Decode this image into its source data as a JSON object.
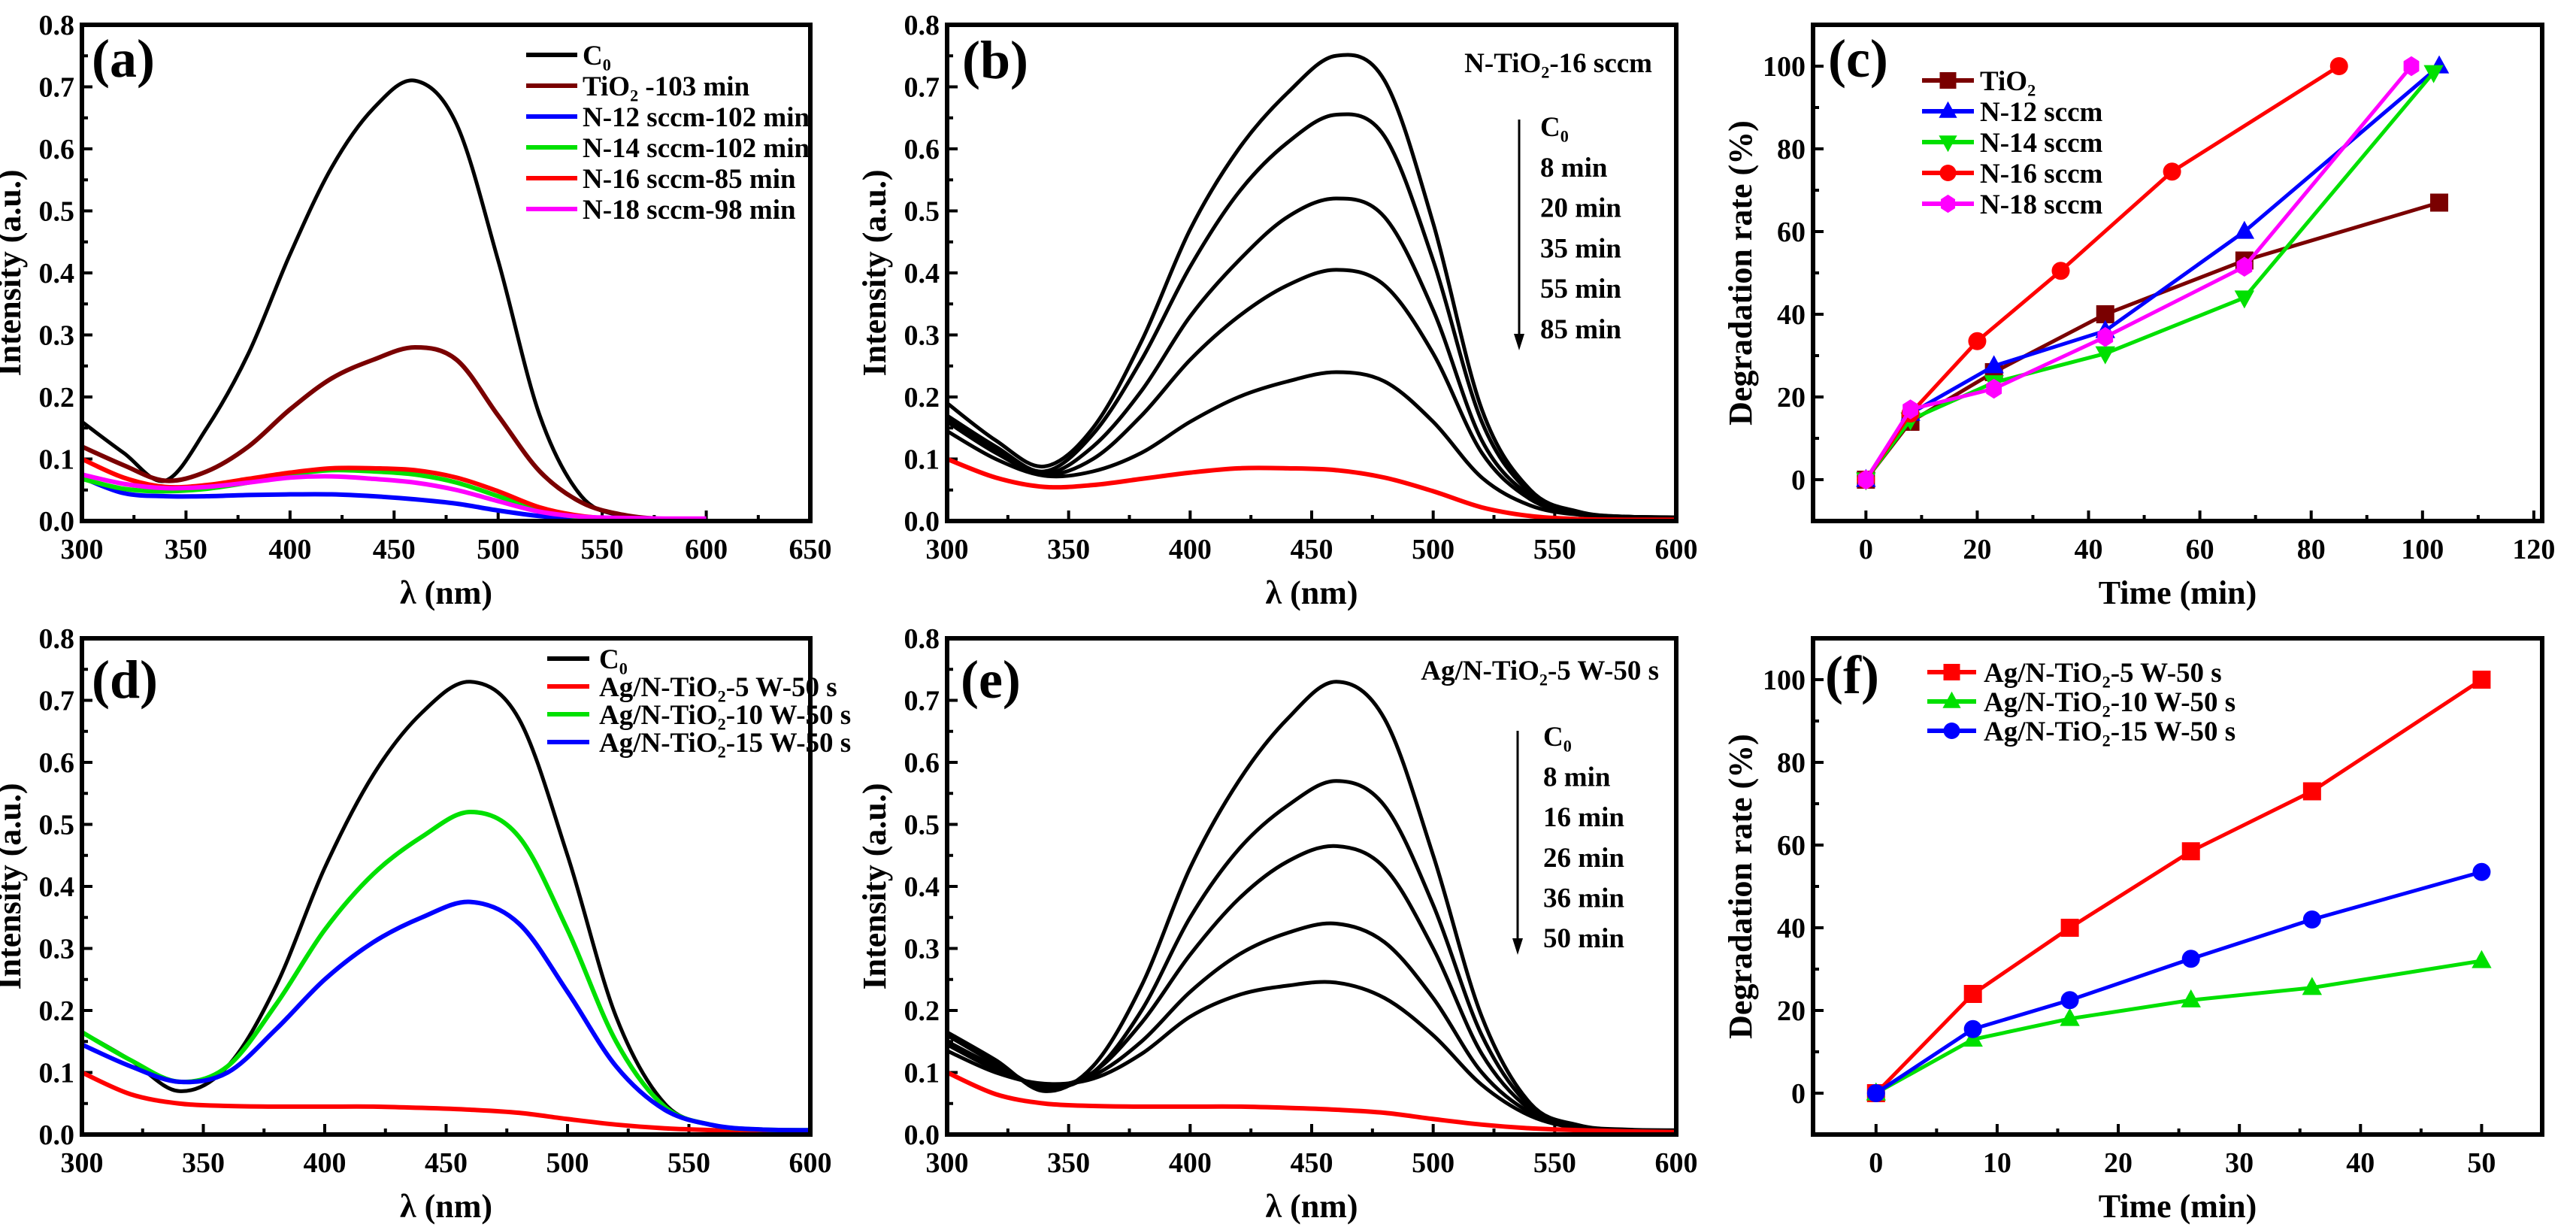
{
  "chart_data": [
    {
      "id": "a",
      "type": "line",
      "panel_label": "(a)",
      "xlabel": "λ  (nm)",
      "ylabel": "Intensity (a.u.)",
      "xlim": [
        300,
        650
      ],
      "ylim": [
        0,
        0.8
      ],
      "xticks": [
        300,
        350,
        400,
        450,
        500,
        550,
        600,
        650
      ],
      "xtick_labels": [
        "300",
        "350",
        "400",
        "450",
        "500",
        "550",
        "600",
        "650"
      ],
      "yticks": [
        0,
        0.1,
        0.2,
        0.3,
        0.4,
        0.5,
        0.6,
        0.7,
        0.8
      ],
      "ytick_labels": [
        "0.0",
        "0.1",
        "0.2",
        "0.3",
        "0.4",
        "0.5",
        "0.6",
        "0.7",
        "0.8"
      ],
      "legend_placement": "top-right",
      "x": [
        300,
        320,
        340,
        360,
        380,
        400,
        420,
        440,
        460,
        480,
        500,
        520,
        540,
        560,
        580,
        600
      ],
      "series": [
        {
          "name": "C₀",
          "color": "#000000",
          "y": [
            0.16,
            0.11,
            0.065,
            0.15,
            0.27,
            0.43,
            0.57,
            0.665,
            0.71,
            0.64,
            0.42,
            0.17,
            0.04,
            0.008,
            0.003,
            0.003
          ]
        },
        {
          "name": "TiO₂ -103 min",
          "color": "#7a0000",
          "y": [
            0.12,
            0.09,
            0.065,
            0.08,
            0.12,
            0.18,
            0.23,
            0.26,
            0.28,
            0.26,
            0.17,
            0.08,
            0.03,
            0.01,
            0.003,
            0.003
          ]
        },
        {
          "name": "N-12 sccm-102 min",
          "color": "#0000ff",
          "y": [
            0.07,
            0.045,
            0.04,
            0.04,
            0.042,
            0.043,
            0.043,
            0.04,
            0.035,
            0.028,
            0.017,
            0.008,
            0.003,
            0.002,
            0.002,
            0.002
          ]
        },
        {
          "name": "N-14 sccm-102 min",
          "color": "#00e000",
          "y": [
            0.068,
            0.052,
            0.048,
            0.052,
            0.062,
            0.075,
            0.082,
            0.08,
            0.075,
            0.062,
            0.04,
            0.017,
            0.006,
            0.003,
            0.003,
            0.003
          ]
        },
        {
          "name": "N-16 sccm-85 min",
          "color": "#ff0000",
          "y": [
            0.1,
            0.07,
            0.055,
            0.058,
            0.068,
            0.078,
            0.085,
            0.085,
            0.082,
            0.07,
            0.048,
            0.022,
            0.008,
            0.003,
            0.002,
            0.002
          ]
        },
        {
          "name": "N-18 sccm-98 min",
          "color": "#ff00ff",
          "y": [
            0.075,
            0.06,
            0.053,
            0.055,
            0.062,
            0.07,
            0.072,
            0.068,
            0.062,
            0.05,
            0.032,
            0.015,
            0.007,
            0.005,
            0.004,
            0.004
          ]
        }
      ]
    },
    {
      "id": "b",
      "type": "line",
      "panel_label": "(b)",
      "xlabel": "λ (nm)",
      "ylabel": "Intensity (a.u.)",
      "xlim": [
        300,
        600
      ],
      "ylim": [
        0,
        0.8
      ],
      "xticks": [
        300,
        350,
        400,
        450,
        500,
        550,
        600
      ],
      "xtick_labels": [
        "300",
        "350",
        "400",
        "450",
        "500",
        "550",
        "600"
      ],
      "yticks": [
        0,
        0.1,
        0.2,
        0.3,
        0.4,
        0.5,
        0.6,
        0.7,
        0.8
      ],
      "ytick_labels": [
        "0.0",
        "0.1",
        "0.2",
        "0.3",
        "0.4",
        "0.5",
        "0.6",
        "0.7",
        "0.8"
      ],
      "annotation": "N-TiO₂-16 sccm",
      "arrow_labels": [
        "C₀",
        "8 min",
        "20 min",
        "35 min",
        "55 min",
        "85 min"
      ],
      "x": [
        300,
        320,
        340,
        360,
        380,
        400,
        420,
        440,
        460,
        480,
        500,
        520,
        540,
        560,
        580,
        600
      ],
      "series": [
        {
          "name": "C₀",
          "color": "#000000",
          "y": [
            0.19,
            0.13,
            0.088,
            0.15,
            0.29,
            0.47,
            0.6,
            0.69,
            0.75,
            0.71,
            0.48,
            0.18,
            0.05,
            0.015,
            0.007,
            0.006
          ]
        },
        {
          "name": "8 min",
          "color": "#000000",
          "y": [
            0.17,
            0.12,
            0.08,
            0.14,
            0.26,
            0.41,
            0.53,
            0.61,
            0.655,
            0.62,
            0.42,
            0.16,
            0.045,
            0.013,
            0.007,
            0.006
          ]
        },
        {
          "name": "20 min",
          "color": "#000000",
          "y": [
            0.165,
            0.115,
            0.076,
            0.12,
            0.21,
            0.33,
            0.42,
            0.49,
            0.52,
            0.49,
            0.34,
            0.13,
            0.04,
            0.012,
            0.007,
            0.006
          ]
        },
        {
          "name": "35 min",
          "color": "#000000",
          "y": [
            0.16,
            0.11,
            0.075,
            0.1,
            0.17,
            0.26,
            0.33,
            0.38,
            0.405,
            0.38,
            0.27,
            0.11,
            0.035,
            0.011,
            0.007,
            0.006
          ]
        },
        {
          "name": "55 min",
          "color": "#000000",
          "y": [
            0.145,
            0.1,
            0.073,
            0.08,
            0.11,
            0.16,
            0.2,
            0.225,
            0.24,
            0.225,
            0.16,
            0.07,
            0.025,
            0.01,
            0.007,
            0.006
          ]
        },
        {
          "name": "85 min",
          "color": "#ff0000",
          "y": [
            0.1,
            0.07,
            0.055,
            0.058,
            0.068,
            0.078,
            0.085,
            0.085,
            0.082,
            0.07,
            0.048,
            0.022,
            0.008,
            0.003,
            0.002,
            0.002
          ]
        }
      ]
    },
    {
      "id": "c",
      "type": "line",
      "panel_label": "(c)",
      "xlabel": "Time (min)",
      "ylabel": "Degradation rate (%)",
      "xlim": [
        -9.5,
        121.5
      ],
      "ylim": [
        -10,
        110
      ],
      "xticks": [
        0,
        20,
        40,
        60,
        80,
        100,
        120
      ],
      "xtick_labels": [
        "0",
        "20",
        "40",
        "60",
        "80",
        "100",
        "120"
      ],
      "yticks": [
        0,
        20,
        40,
        60,
        80,
        100
      ],
      "ytick_labels": [
        "0",
        "20",
        "40",
        "60",
        "80",
        "100"
      ],
      "legend_placement": "top-left",
      "series": [
        {
          "name": "TiO₂",
          "color": "#7a0000",
          "marker": "square",
          "x": [
            0,
            8,
            23,
            43,
            68,
            103
          ],
          "y": [
            0,
            14,
            26,
            40,
            53,
            67
          ]
        },
        {
          "name": "N-12 sccm",
          "color": "#0000ff",
          "marker": "triangle-up",
          "x": [
            0,
            8,
            23,
            43,
            68,
            103
          ],
          "y": [
            0,
            16,
            27.5,
            36,
            60,
            100
          ]
        },
        {
          "name": "N-14 sccm",
          "color": "#00e000",
          "marker": "triangle-down",
          "x": [
            0,
            8,
            23,
            43,
            68,
            102
          ],
          "y": [
            0,
            14.5,
            23.5,
            30.5,
            44,
            98.5
          ]
        },
        {
          "name": "N-16 sccm",
          "color": "#ff0000",
          "marker": "circle",
          "x": [
            0,
            8,
            20,
            35,
            55,
            85
          ],
          "y": [
            0,
            16,
            33.5,
            50.5,
            74.5,
            100
          ]
        },
        {
          "name": "N-18 sccm",
          "color": "#ff00ff",
          "marker": "hexagon",
          "x": [
            0,
            8,
            23,
            43,
            68,
            98
          ],
          "y": [
            0,
            17,
            22,
            34.5,
            51.5,
            100
          ]
        }
      ]
    },
    {
      "id": "d",
      "type": "line",
      "panel_label": "(d)",
      "xlabel": "λ (nm)",
      "ylabel": "Intensity (a.u.)",
      "xlim": [
        300,
        600
      ],
      "ylim": [
        0,
        0.8
      ],
      "xticks": [
        300,
        350,
        400,
        450,
        500,
        550,
        600
      ],
      "xtick_labels": [
        "300",
        "350",
        "400",
        "450",
        "500",
        "550",
        "600"
      ],
      "yticks": [
        0,
        0.1,
        0.2,
        0.3,
        0.4,
        0.5,
        0.6,
        0.7,
        0.8
      ],
      "ytick_labels": [
        "0.0",
        "0.1",
        "0.2",
        "0.3",
        "0.4",
        "0.5",
        "0.6",
        "0.7",
        "0.8"
      ],
      "legend_placement": "top-right",
      "x": [
        300,
        320,
        340,
        360,
        380,
        400,
        420,
        440,
        460,
        480,
        500,
        520,
        540,
        560,
        580,
        600
      ],
      "series": [
        {
          "name": "C₀",
          "color": "#000000",
          "y": [
            0.165,
            0.12,
            0.07,
            0.11,
            0.24,
            0.43,
            0.58,
            0.68,
            0.73,
            0.67,
            0.45,
            0.19,
            0.05,
            0.015,
            0.008,
            0.007
          ]
        },
        {
          "name": "Ag/N-TiO₂-5 W-50 s",
          "color": "#ff0000",
          "y": [
            0.1,
            0.065,
            0.05,
            0.046,
            0.045,
            0.045,
            0.045,
            0.043,
            0.04,
            0.035,
            0.025,
            0.016,
            0.01,
            0.007,
            0.005,
            0.004
          ]
        },
        {
          "name": "Ag/N-TiO₂-10 W-50 s",
          "color": "#00e000",
          "y": [
            0.165,
            0.12,
            0.085,
            0.11,
            0.21,
            0.33,
            0.42,
            0.48,
            0.52,
            0.48,
            0.33,
            0.15,
            0.045,
            0.015,
            0.008,
            0.007
          ]
        },
        {
          "name": "Ag/N-TiO₂-15 W-50 s",
          "color": "#0000ff",
          "y": [
            0.145,
            0.11,
            0.085,
            0.1,
            0.17,
            0.25,
            0.31,
            0.35,
            0.375,
            0.34,
            0.23,
            0.11,
            0.04,
            0.015,
            0.008,
            0.007
          ]
        }
      ]
    },
    {
      "id": "e",
      "type": "line",
      "panel_label": "(e)",
      "xlabel": "λ (nm)",
      "ylabel": "Intensity (a.u.)",
      "xlim": [
        300,
        600
      ],
      "ylim": [
        0,
        0.8
      ],
      "xticks": [
        300,
        350,
        400,
        450,
        500,
        550,
        600
      ],
      "xtick_labels": [
        "300",
        "350",
        "400",
        "450",
        "500",
        "550",
        "600"
      ],
      "yticks": [
        0,
        0.1,
        0.2,
        0.3,
        0.4,
        0.5,
        0.6,
        0.7,
        0.8
      ],
      "ytick_labels": [
        "0.0",
        "0.1",
        "0.2",
        "0.3",
        "0.4",
        "0.5",
        "0.6",
        "0.7",
        "0.8"
      ],
      "annotation": "Ag/N-TiO₂-5 W-50 s",
      "arrow_labels": [
        "C₀",
        "8 min",
        "16 min",
        "26 min",
        "36 min",
        "50 min"
      ],
      "x": [
        300,
        320,
        340,
        360,
        380,
        400,
        420,
        440,
        460,
        480,
        500,
        520,
        540,
        560,
        580,
        600
      ],
      "series": [
        {
          "name": "C₀",
          "color": "#000000",
          "y": [
            0.165,
            0.12,
            0.07,
            0.11,
            0.24,
            0.43,
            0.57,
            0.67,
            0.73,
            0.67,
            0.45,
            0.19,
            0.05,
            0.015,
            0.008,
            0.007
          ]
        },
        {
          "name": "8 min",
          "color": "#000000",
          "y": [
            0.16,
            0.115,
            0.075,
            0.1,
            0.2,
            0.35,
            0.46,
            0.53,
            0.57,
            0.53,
            0.37,
            0.16,
            0.045,
            0.013,
            0.007,
            0.006
          ]
        },
        {
          "name": "16 min",
          "color": "#000000",
          "y": [
            0.15,
            0.11,
            0.078,
            0.1,
            0.18,
            0.29,
            0.38,
            0.44,
            0.465,
            0.43,
            0.3,
            0.13,
            0.04,
            0.012,
            0.007,
            0.006
          ]
        },
        {
          "name": "26 min",
          "color": "#000000",
          "y": [
            0.145,
            0.105,
            0.08,
            0.095,
            0.15,
            0.23,
            0.29,
            0.325,
            0.34,
            0.31,
            0.22,
            0.1,
            0.035,
            0.01,
            0.007,
            0.006
          ]
        },
        {
          "name": "36 min",
          "color": "#000000",
          "y": [
            0.135,
            0.1,
            0.082,
            0.09,
            0.13,
            0.19,
            0.225,
            0.24,
            0.245,
            0.22,
            0.16,
            0.08,
            0.03,
            0.01,
            0.007,
            0.006
          ]
        },
        {
          "name": "50 min",
          "color": "#ff0000",
          "y": [
            0.1,
            0.065,
            0.05,
            0.046,
            0.045,
            0.045,
            0.045,
            0.043,
            0.04,
            0.035,
            0.025,
            0.016,
            0.01,
            0.007,
            0.005,
            0.004
          ]
        }
      ]
    },
    {
      "id": "f",
      "type": "line",
      "panel_label": "(f)",
      "xlabel": "Time (min)",
      "ylabel": "Degradation rate (%)",
      "xlim": [
        -5.2,
        55
      ],
      "ylim": [
        -10,
        110
      ],
      "xticks": [
        0,
        10,
        20,
        30,
        40,
        50
      ],
      "xtick_labels": [
        "0",
        "10",
        "20",
        "30",
        "40",
        "50"
      ],
      "yticks": [
        0,
        20,
        40,
        60,
        80,
        100
      ],
      "ytick_labels": [
        "0",
        "20",
        "40",
        "60",
        "80",
        "100"
      ],
      "legend_placement": "top-left",
      "series": [
        {
          "name": "Ag/N-TiO₂-5 W-50 s",
          "color": "#ff0000",
          "marker": "square",
          "x": [
            0,
            8,
            16,
            26,
            36,
            50
          ],
          "y": [
            0,
            24,
            40,
            58.5,
            73,
            100
          ]
        },
        {
          "name": "Ag/N-TiO₂-10 W-50 s",
          "color": "#00e000",
          "marker": "triangle-up",
          "x": [
            0,
            8,
            16,
            26,
            36,
            50
          ],
          "y": [
            0,
            13,
            18,
            22.5,
            25.5,
            32
          ]
        },
        {
          "name": "Ag/N-TiO₂-15 W-50 s",
          "color": "#0000ff",
          "marker": "circle",
          "x": [
            0,
            8,
            16,
            26,
            36,
            50
          ],
          "y": [
            0,
            15.5,
            22.5,
            32.5,
            42,
            53.5
          ]
        }
      ]
    }
  ]
}
